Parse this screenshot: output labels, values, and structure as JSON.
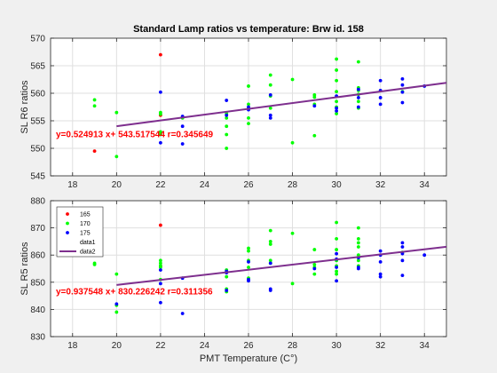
{
  "figure": {
    "title": "Standard Lamp ratios vs temperature: Brw id. 158"
  },
  "colors": {
    "s165": "#ff0000",
    "s170": "#00ff00",
    "s175": "#0000ff",
    "fit": "#7e2f8e",
    "annotation": "#ff0000"
  },
  "chart_data": [
    {
      "type": "scatter",
      "title": "Standard Lamp ratios vs temperature: Brw id. 158",
      "xlabel": "",
      "ylabel": "SL R6 ratios",
      "xlim": [
        17,
        35
      ],
      "ylim": [
        545,
        570
      ],
      "xticks": [
        18,
        20,
        22,
        24,
        26,
        28,
        30,
        32,
        34
      ],
      "yticks": [
        545,
        550,
        555,
        560,
        565,
        570
      ],
      "grid": true,
      "annotation": "y=0.524913 x+ 543.517544 r=0.345649",
      "fit": {
        "slope": 0.524913,
        "intercept": 543.517544,
        "x": [
          20,
          35
        ]
      },
      "series": [
        {
          "name": "165",
          "color": "#ff0000",
          "points": [
            [
              19,
              549.5
            ],
            [
              22,
              567
            ],
            [
              22,
              556
            ]
          ]
        },
        {
          "name": "170",
          "color": "#00ff00",
          "points": [
            [
              19,
              558.8
            ],
            [
              19,
              557.7
            ],
            [
              20,
              556.5
            ],
            [
              20,
              548.5
            ],
            [
              22,
              556.5
            ],
            [
              22,
              556.2
            ],
            [
              22,
              553
            ],
            [
              22,
              552.5
            ],
            [
              23,
              555.5
            ],
            [
              25,
              556.3
            ],
            [
              25,
              555.5
            ],
            [
              25,
              554
            ],
            [
              25,
              552.5
            ],
            [
              25,
              550
            ],
            [
              26,
              561.3
            ],
            [
              26,
              558
            ],
            [
              26,
              557.4
            ],
            [
              26,
              555.5
            ],
            [
              26,
              554.5
            ],
            [
              27,
              563.3
            ],
            [
              27,
              561.5
            ],
            [
              27,
              559.5
            ],
            [
              27,
              557.3
            ],
            [
              28,
              562.5
            ],
            [
              28,
              551
            ],
            [
              29,
              559.7
            ],
            [
              29,
              559.3
            ],
            [
              29,
              558
            ],
            [
              29,
              552.3
            ],
            [
              30,
              566.2
            ],
            [
              30,
              564.2
            ],
            [
              30,
              562.3
            ],
            [
              30,
              560.3
            ],
            [
              30,
              558.5
            ],
            [
              30,
              557.5
            ],
            [
              30,
              556.3
            ],
            [
              31,
              565.7
            ],
            [
              31,
              561
            ],
            [
              31,
              560.5
            ],
            [
              31,
              559.8
            ],
            [
              31,
              558.5
            ],
            [
              31,
              557.3
            ],
            [
              33,
              560.3
            ]
          ]
        },
        {
          "name": "175",
          "color": "#0000ff",
          "points": [
            [
              22,
              560.2
            ],
            [
              22,
              551
            ],
            [
              23,
              555.8
            ],
            [
              23,
              554
            ],
            [
              23,
              550.8
            ],
            [
              25,
              558.7
            ],
            [
              25,
              556
            ],
            [
              26,
              557.5
            ],
            [
              26,
              557
            ],
            [
              27,
              559.7
            ],
            [
              27,
              556
            ],
            [
              27,
              555.5
            ],
            [
              29,
              557.7
            ],
            [
              30,
              559.5
            ],
            [
              30,
              557.3
            ],
            [
              30,
              556.8
            ],
            [
              31,
              560.7
            ],
            [
              31,
              559.2
            ],
            [
              31,
              557.5
            ],
            [
              32,
              562.3
            ],
            [
              32,
              560.5
            ],
            [
              32,
              559.2
            ],
            [
              32,
              558
            ],
            [
              33,
              562.6
            ],
            [
              33,
              561.5
            ],
            [
              33,
              560.2
            ],
            [
              33,
              558.3
            ],
            [
              34,
              561.3
            ]
          ]
        }
      ]
    },
    {
      "type": "scatter",
      "xlabel": "PMT Temperature (C°)",
      "ylabel": "SL R5 ratios",
      "xlim": [
        17,
        35
      ],
      "ylim": [
        830,
        880
      ],
      "xticks": [
        18,
        20,
        22,
        24,
        26,
        28,
        30,
        32,
        34
      ],
      "yticks": [
        830,
        840,
        850,
        860,
        870,
        880
      ],
      "grid": true,
      "legend_position": "top-left",
      "legend": [
        "165",
        "170",
        "175",
        "data1",
        "data2"
      ],
      "annotation": "y=0.937548 x+ 830.226242 r=0.311356",
      "fit": {
        "slope": 0.937548,
        "intercept": 830.226242,
        "x": [
          20,
          35
        ]
      },
      "series": [
        {
          "name": "165",
          "color": "#ff0000",
          "points": [
            [
              22,
              871
            ],
            [
              22,
              856
            ]
          ]
        },
        {
          "name": "170",
          "color": "#00ff00",
          "points": [
            [
              19,
              857
            ],
            [
              19,
              856.5
            ],
            [
              20,
              853
            ],
            [
              20,
              841.5
            ],
            [
              20,
              839
            ],
            [
              22,
              858
            ],
            [
              22,
              857
            ],
            [
              22,
              856
            ],
            [
              22,
              855.5
            ],
            [
              22,
              851
            ],
            [
              25,
              854.5
            ],
            [
              25,
              852
            ],
            [
              25,
              847.5
            ],
            [
              25,
              846.5
            ],
            [
              26,
              862.5
            ],
            [
              26,
              861.5
            ],
            [
              26,
              858
            ],
            [
              26,
              855.5
            ],
            [
              26,
              851.5
            ],
            [
              27,
              869
            ],
            [
              27,
              865
            ],
            [
              27,
              864
            ],
            [
              27,
              858
            ],
            [
              27,
              857
            ],
            [
              28,
              868
            ],
            [
              28,
              849.5
            ],
            [
              29,
              862
            ],
            [
              29,
              856.5
            ],
            [
              29,
              855.5
            ],
            [
              29,
              853
            ],
            [
              30,
              872
            ],
            [
              30,
              866
            ],
            [
              30,
              862
            ],
            [
              30,
              858
            ],
            [
              30,
              856
            ],
            [
              30,
              854
            ],
            [
              30,
              853
            ],
            [
              31,
              870
            ],
            [
              31,
              866
            ],
            [
              31,
              864.5
            ],
            [
              31,
              863
            ],
            [
              31,
              860
            ],
            [
              31,
              858
            ],
            [
              31,
              856
            ],
            [
              33,
              861
            ]
          ]
        },
        {
          "name": "175",
          "color": "#0000ff",
          "points": [
            [
              20,
              842
            ],
            [
              22,
              854.5
            ],
            [
              22,
              849.5
            ],
            [
              22,
              842.5
            ],
            [
              23,
              851.5
            ],
            [
              23,
              838.5
            ],
            [
              25,
              854
            ],
            [
              25,
              853.5
            ],
            [
              25,
              847
            ],
            [
              26,
              857.5
            ],
            [
              26,
              851
            ],
            [
              26,
              850.5
            ],
            [
              27,
              857
            ],
            [
              27,
              847.5
            ],
            [
              27,
              847
            ],
            [
              29,
              855
            ],
            [
              30,
              860.5
            ],
            [
              30,
              858.5
            ],
            [
              30,
              855.5
            ],
            [
              30,
              850.5
            ],
            [
              31,
              859
            ],
            [
              31,
              855.5
            ],
            [
              31,
              855
            ],
            [
              32,
              861.5
            ],
            [
              32,
              860
            ],
            [
              32,
              857.5
            ],
            [
              32,
              853
            ],
            [
              32,
              852
            ],
            [
              33,
              864.5
            ],
            [
              33,
              863
            ],
            [
              33,
              860.5
            ],
            [
              33,
              858
            ],
            [
              33,
              852.5
            ],
            [
              34,
              860
            ]
          ]
        }
      ]
    }
  ]
}
